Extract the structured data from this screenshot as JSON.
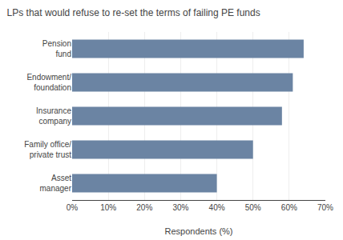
{
  "chart_data": {
    "type": "bar",
    "orientation": "horizontal",
    "title": "LPs that would refuse to re-set the terms of failing PE funds",
    "categories": [
      "Asset\nmanager",
      "Family office/\nprivate trust",
      "Insurance\ncompany",
      "Endowment/\nfoundation",
      "Pension\nfund"
    ],
    "values": [
      40,
      50,
      58,
      61,
      64
    ],
    "color": "#6b84a3",
    "xlabel": "Respondents (%)",
    "xlim": [
      0,
      70
    ],
    "xticks": [
      {
        "value": 0,
        "label": "0%"
      },
      {
        "value": 10,
        "label": "10%"
      },
      {
        "value": 20,
        "label": "20%"
      },
      {
        "value": 30,
        "label": "30%"
      },
      {
        "value": 40,
        "label": "40%"
      },
      {
        "value": 50,
        "label": "50%"
      },
      {
        "value": 60,
        "label": "60%"
      },
      {
        "value": 70,
        "label": "70%"
      }
    ],
    "grid": true
  }
}
